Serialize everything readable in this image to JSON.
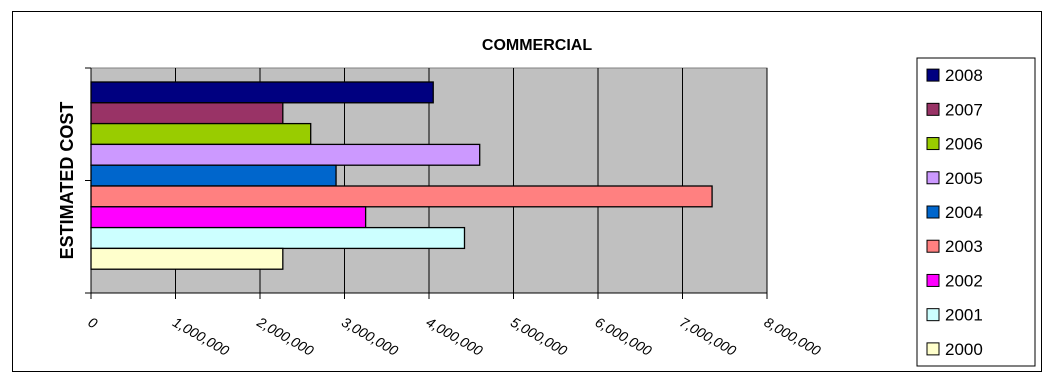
{
  "chart_data": {
    "type": "bar",
    "orientation": "horizontal",
    "title": "COMMERCIAL",
    "xlabel": "",
    "ylabel": "ESTIMATED COST",
    "xlim": [
      0,
      8000000
    ],
    "x_ticks": [
      0,
      1000000,
      2000000,
      3000000,
      4000000,
      5000000,
      6000000,
      7000000,
      8000000
    ],
    "x_tick_labels": [
      "0",
      "1,000,000",
      "2,000,000",
      "3,000,000",
      "4,000,000",
      "5,000,000",
      "6,000,000",
      "7,000,000",
      "8,000,000"
    ],
    "grid": "vertical",
    "legend_position": "right",
    "series": [
      {
        "name": "2008",
        "value": 4050000,
        "color": "#000080"
      },
      {
        "name": "2007",
        "value": 2270000,
        "color": "#993366"
      },
      {
        "name": "2006",
        "value": 2600000,
        "color": "#99cc00"
      },
      {
        "name": "2005",
        "value": 4600000,
        "color": "#cc99ff"
      },
      {
        "name": "2004",
        "value": 2900000,
        "color": "#0066cc"
      },
      {
        "name": "2003",
        "value": 7350000,
        "color": "#ff8080"
      },
      {
        "name": "2002",
        "value": 3250000,
        "color": "#ff00ff"
      },
      {
        "name": "2001",
        "value": 4420000,
        "color": "#ccffff"
      },
      {
        "name": "2000",
        "value": 2270000,
        "color": "#ffffcc"
      }
    ],
    "plot_background": "#c0c0c0"
  }
}
